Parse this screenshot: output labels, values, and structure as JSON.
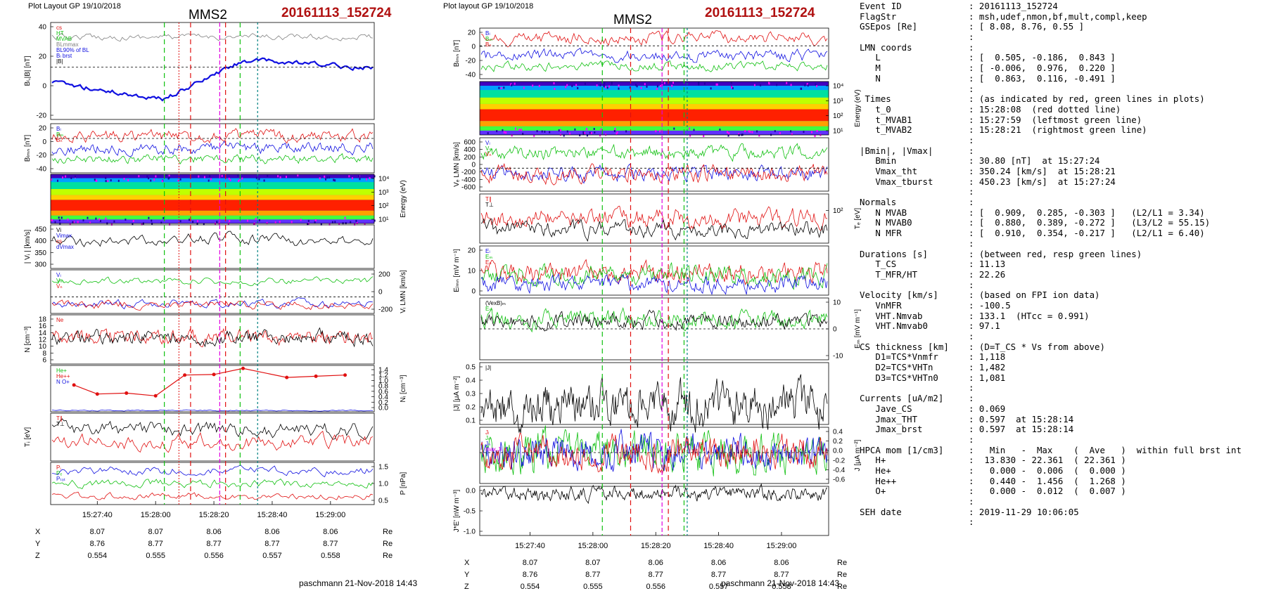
{
  "left": {
    "header": "Plot Layout GP 19/10/2018",
    "title": "MMS2",
    "event": "20161113_152724",
    "footer": "paschmann 21-Nov-2018 14:43",
    "time_ticks": [
      "15:27:40",
      "15:28:00",
      "15:28:20",
      "15:28:40",
      "15:29:00"
    ],
    "panels": [
      {
        "id": "b-abs",
        "ylabel": "Bₗ,|B| [nT]",
        "ticks": [
          "40",
          "20",
          "0",
          "-20"
        ],
        "legend": [
          "cs",
          "HT",
          "MVAB",
          "BLmmax",
          "BL90% of BL",
          "Bₗ brst",
          "|B|"
        ]
      },
      {
        "id": "b-lmn",
        "ylabel": "Bₗₘₙ [nT]",
        "ticks": [
          "20",
          "0",
          "-20",
          "-40"
        ],
        "legend": [
          "Bₗ",
          "Bₘ",
          "Bₙ"
        ]
      },
      {
        "id": "ion-spec",
        "ylabel": "Energy (eV)",
        "ticks": [
          "10⁴",
          "10³",
          "10²",
          "10¹"
        ],
        "legend": []
      },
      {
        "id": "vi-abs",
        "ylabel": "| Vᵢ | [km/s]",
        "ticks": [
          "450",
          "400",
          "350",
          "300"
        ],
        "legend": [
          "Vi",
          "Vimax",
          "cs",
          "dVmax"
        ]
      },
      {
        "id": "vi-lmn",
        "ylabel": "Vᵢ LMN [km/s]",
        "ticks": [
          "200",
          "0",
          "-200"
        ],
        "legend": [
          "Vₗ",
          "Vₘ",
          "Vₙ"
        ]
      },
      {
        "id": "density",
        "ylabel": "N [cm⁻³]",
        "ticks": [
          "18",
          "16",
          "14",
          "12",
          "10",
          "8",
          "6"
        ],
        "legend": [
          "Ne"
        ]
      },
      {
        "id": "ni",
        "ylabel": "Nᵢ [cm⁻³]",
        "ticks": [
          "1.4",
          "1.2",
          "1.0",
          "0.8",
          "0.6",
          "0.4",
          "0.2",
          "0.0"
        ],
        "legend": [
          "He+",
          "He++",
          "N O+"
        ]
      },
      {
        "id": "ti",
        "ylabel": "Tᵢ [eV]",
        "ticks": [],
        "legend": [
          "T∥",
          "T⊥"
        ]
      },
      {
        "id": "pressure",
        "ylabel": "P [nPa]",
        "ticks": [
          "1.5",
          "1.0",
          "0.5"
        ],
        "legend": [
          "Pᵢ",
          "Pₑ",
          "Pₜₒₜ"
        ]
      }
    ],
    "coords": {
      "rows": [
        {
          "label": "X",
          "values": [
            "8.07",
            "8.07",
            "8.06",
            "8.06",
            "8.06"
          ],
          "unit": "Re"
        },
        {
          "label": "Y",
          "values": [
            "8.76",
            "8.77",
            "8.77",
            "8.77",
            "8.77"
          ],
          "unit": "Re"
        },
        {
          "label": "Z",
          "values": [
            "0.554",
            "0.555",
            "0.556",
            "0.557",
            "0.558"
          ],
          "unit": "Re"
        }
      ]
    }
  },
  "right": {
    "header": "Plot layout GP 19/10/2018",
    "title": "MMS2",
    "event": "20161113_152724",
    "footer": "paschmann 21-Nov-2018 14:43",
    "time_ticks": [
      "15:27:40",
      "15:28:00",
      "15:28:20",
      "15:28:40",
      "15:29:00"
    ],
    "panels": [
      {
        "id": "b-lmn",
        "ylabel": "Bₗₘₙ [nT]",
        "ticks": [
          "20",
          "0",
          "-20",
          "-40"
        ],
        "legend": [
          "Bₗ",
          "Bₘ",
          "Bₙ"
        ]
      },
      {
        "id": "ele-spec",
        "ylabel": "Energy (eV)",
        "ticks": [
          "10⁴",
          "10³",
          "10²",
          "10¹"
        ],
        "legend": []
      },
      {
        "id": "ve-lmn",
        "ylabel": "Vₑ LMN [km/s]",
        "ticks": [
          "600",
          "400",
          "200",
          "0",
          "-200",
          "-400",
          "-600"
        ],
        "legend": [
          "Vₗ",
          "Vₘ",
          "Vₙ"
        ]
      },
      {
        "id": "te",
        "ylabel": "Tₑ [eV]",
        "ticks": [
          "10²"
        ],
        "legend": [
          "T∥",
          "T⊥"
        ]
      },
      {
        "id": "e-lmn",
        "ylabel": "Eₗₘₙ [mV m⁻¹]",
        "ticks": [
          "20",
          "10",
          "0"
        ],
        "legend": [
          "Eₗ",
          "Eₘ",
          "Eₙ"
        ]
      },
      {
        "id": "em",
        "ylabel": "Eₘ [mV m⁻¹]",
        "ticks": [
          "10",
          "0",
          "-10"
        ],
        "legend": [
          "(VexB)ₘ",
          "Eₘ"
        ]
      },
      {
        "id": "j-abs",
        "ylabel": "|J| [μA m⁻²]",
        "ticks": [
          "0.5",
          "0.4",
          "0.3",
          "0.2",
          "0.1"
        ],
        "legend": [
          "|J|"
        ]
      },
      {
        "id": "j-lmn",
        "ylabel": "J [μA m⁻²]",
        "ticks": [
          "0.4",
          "0.2",
          "0.0",
          "-0.2",
          "-0.4",
          "-0.6"
        ],
        "legend": [
          "Jₗ",
          "Jₘ",
          "Jₙ",
          "max Jₗ"
        ]
      },
      {
        "id": "je",
        "ylabel": "J*E' [nW m⁻³]",
        "ticks": [
          "0.0",
          "-0.5",
          "-1.0"
        ],
        "legend": []
      }
    ],
    "coords": {
      "rows": [
        {
          "label": "X",
          "values": [
            "8.07",
            "8.07",
            "8.06",
            "8.06",
            "8.06"
          ],
          "unit": "Re"
        },
        {
          "label": "Y",
          "values": [
            "8.76",
            "8.77",
            "8.77",
            "8.77",
            "8.77"
          ],
          "unit": "Re"
        },
        {
          "label": "Z",
          "values": [
            "0.554",
            "0.555",
            "0.556",
            "0.557",
            "0.558"
          ],
          "unit": "Re"
        }
      ]
    }
  },
  "summary": [
    {
      "k": "Event ID",
      "v": ": 20161113_152724"
    },
    {
      "k": "FlagStr",
      "v": ": msh,udef,nmon,bf,mult,compl,keep"
    },
    {
      "k": "GSEpos [Re]",
      "v": ": [ 8.08, 8.76, 0.55 ]"
    },
    {
      "k": "",
      "v": ":"
    },
    {
      "k": "LMN coords",
      "v": ":"
    },
    {
      "k": "   L",
      "v": ": [  0.505, -0.186,  0.843 ]"
    },
    {
      "k": "   M",
      "v": ": [ -0.006,  0.976,  0.220 ]"
    },
    {
      "k": "   N",
      "v": ": [  0.863,  0.116, -0.491 ]"
    },
    {
      "k": "",
      "v": ":"
    },
    {
      "k": " Times",
      "v": ": (as indicated by red, green lines in plots)"
    },
    {
      "k": "   t_0",
      "v": ": 15:28:08  (red dotted line)"
    },
    {
      "k": "   t_MVAB1",
      "v": ": 15:27:59  (leftmost green line)"
    },
    {
      "k": "   t_MVAB2",
      "v": ": 15:28:21  (rightmost green line)"
    },
    {
      "k": "",
      "v": ":"
    },
    {
      "k": "|Bmin|, |Vmax|",
      "v": ":"
    },
    {
      "k": "   Bmin",
      "v": ": 30.80 [nT]  at 15:27:24"
    },
    {
      "k": "   Vmax_tht",
      "v": ": 350.24 [km/s]  at 15:28:21"
    },
    {
      "k": "   Vmax_tburst",
      "v": ": 450.23 [km/s]  at 15:27:24"
    },
    {
      "k": "",
      "v": ":"
    },
    {
      "k": "Normals",
      "v": ":"
    },
    {
      "k": "   N MVAB",
      "v": ": [  0.909,  0.285, -0.303 ]   (L2/L1 = 3.34)"
    },
    {
      "k": "   N MVAB0",
      "v": ": [  0.880,  0.389, -0.272 ]   (L3/L2 = 55.15)"
    },
    {
      "k": "   N MFR",
      "v": ": [  0.910,  0.354, -0.217 ]   (L2/L1 = 6.40)"
    },
    {
      "k": "",
      "v": ":"
    },
    {
      "k": "Durations [s]",
      "v": ": (between red, resp green lines)"
    },
    {
      "k": "   T_CS",
      "v": ": 11.13"
    },
    {
      "k": "   T_MFR/HT",
      "v": ": 22.26"
    },
    {
      "k": "",
      "v": ":"
    },
    {
      "k": "Velocity [km/s]",
      "v": ": (based on FPI ion data)"
    },
    {
      "k": "   VnMFR",
      "v": ": -100.5"
    },
    {
      "k": "   VHT.Nmvab",
      "v": ": 133.1  (HTcc = 0.991)"
    },
    {
      "k": "   VHT.Nmvab0",
      "v": ": 97.1"
    },
    {
      "k": "",
      "v": ":"
    },
    {
      "k": "CS thickness [km]",
      "v": ": (D=T_CS * Vs from above)"
    },
    {
      "k": "   D1=TCS*Vnmfr",
      "v": ": 1,118"
    },
    {
      "k": "   D2=TCS*VHTn",
      "v": ": 1,482"
    },
    {
      "k": "   D3=TCS*VHTn0",
      "v": ": 1,081"
    },
    {
      "k": "",
      "v": ":"
    },
    {
      "k": "Currents [uA/m2]",
      "v": ":"
    },
    {
      "k": "   Jave_CS",
      "v": ": 0.069"
    },
    {
      "k": "   Jmax_THT",
      "v": ": 0.597  at 15:28:14"
    },
    {
      "k": "   Jmax_brst",
      "v": ": 0.597  at 15:28:14"
    },
    {
      "k": "",
      "v": ":"
    },
    {
      "k": "HPCA mom [1/cm3]",
      "v": ":   Min   -  Max    (  Ave   )  within full brst int"
    },
    {
      "k": "   H+",
      "v": ":  13.830 - 22.361  ( 22.361 )"
    },
    {
      "k": "   He+",
      "v": ":   0.000 -  0.006  (  0.000 )"
    },
    {
      "k": "   He++",
      "v": ":   0.440 -  1.456  (  1.268 )"
    },
    {
      "k": "   O+",
      "v": ":   0.000 -  0.012  (  0.007 )"
    },
    {
      "k": "",
      "v": ":"
    },
    {
      "k": "SEH date",
      "v": ": 2019-11-29 10:06:05"
    },
    {
      "k": "",
      "v": ":"
    }
  ],
  "chart_data": [
    {
      "type": "line",
      "x_range": [
        "15:27:24",
        "15:29:15"
      ],
      "marker_times": {
        "red_dotted": "15:28:08",
        "green": [
          "15:27:59",
          "15:28:21"
        ],
        "red_dashed": [
          "15:28:03",
          "15:28:14"
        ]
      },
      "ni": {
        "series": [
          {
            "name": "He++",
            "x": [
              "15:27:32",
              "15:27:40",
              "15:27:50",
              "15:28:00",
              "15:28:10",
              "15:28:20",
              "15:28:30",
              "15:28:45",
              "15:28:55",
              "15:29:05"
            ],
            "values": [
              0.82,
              0.52,
              0.55,
              0.46,
              1.15,
              1.17,
              1.37,
              1.07,
              1.11,
              1.15
            ]
          }
        ],
        "ylim": [
          0,
          1.4
        ]
      },
      "ion_speed": {
        "ylim": [
          270,
          460
        ]
      },
      "density": {
        "ylim": [
          4,
          18
        ]
      }
    }
  ]
}
